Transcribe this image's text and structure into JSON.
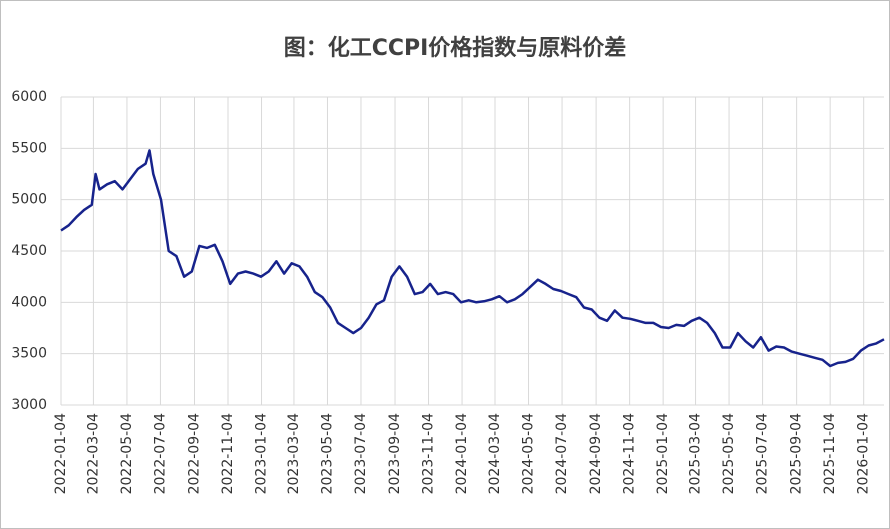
{
  "chart_data": {
    "type": "line",
    "title": "图：化工CCPI价格指数与原料价差",
    "x": [
      "2022-01-04",
      "2022-01-18",
      "2022-02-01",
      "2022-02-15",
      "2022-03-01",
      "2022-03-08",
      "2022-03-15",
      "2022-03-29",
      "2022-04-12",
      "2022-04-26",
      "2022-05-10",
      "2022-05-24",
      "2022-06-07",
      "2022-06-14",
      "2022-06-21",
      "2022-07-05",
      "2022-07-19",
      "2022-08-02",
      "2022-08-16",
      "2022-08-30",
      "2022-09-13",
      "2022-09-27",
      "2022-10-11",
      "2022-10-25",
      "2022-11-08",
      "2022-11-22",
      "2022-12-06",
      "2022-12-20",
      "2023-01-03",
      "2023-01-17",
      "2023-01-31",
      "2023-02-14",
      "2023-02-28",
      "2023-03-14",
      "2023-03-28",
      "2023-04-11",
      "2023-04-25",
      "2023-05-09",
      "2023-05-23",
      "2023-06-06",
      "2023-06-20",
      "2023-07-04",
      "2023-07-18",
      "2023-08-01",
      "2023-08-15",
      "2023-08-29",
      "2023-09-12",
      "2023-09-26",
      "2023-10-10",
      "2023-10-24",
      "2023-11-07",
      "2023-11-21",
      "2023-12-05",
      "2023-12-19",
      "2024-01-02",
      "2024-01-16",
      "2024-01-30",
      "2024-02-13",
      "2024-02-27",
      "2024-03-12",
      "2024-03-26",
      "2024-04-09",
      "2024-04-23",
      "2024-05-07",
      "2024-05-21",
      "2024-06-04",
      "2024-06-18",
      "2024-07-02",
      "2024-07-16",
      "2024-07-30",
      "2024-08-13",
      "2024-08-27",
      "2024-09-10",
      "2024-09-24",
      "2024-10-08",
      "2024-10-22",
      "2024-11-05",
      "2024-11-19",
      "2024-12-03",
      "2024-12-17",
      "2024-12-31",
      "2025-01-14",
      "2025-01-28",
      "2025-02-11",
      "2025-02-25",
      "2025-03-11",
      "2025-03-25",
      "2025-04-08",
      "2025-04-22",
      "2025-05-06",
      "2025-05-20",
      "2025-06-03",
      "2025-06-17",
      "2025-07-01",
      "2025-07-15",
      "2025-07-29",
      "2025-08-12",
      "2025-08-26",
      "2025-09-09",
      "2025-09-23",
      "2025-10-07",
      "2025-10-21",
      "2025-11-04",
      "2025-11-18",
      "2025-12-02",
      "2025-12-16",
      "2025-12-30",
      "2026-01-13",
      "2026-01-27",
      "2026-02-10"
    ],
    "values": [
      4700,
      4750,
      4830,
      4900,
      4950,
      5250,
      5100,
      5150,
      5180,
      5100,
      5200,
      5300,
      5350,
      5480,
      5250,
      5000,
      4500,
      4450,
      4250,
      4300,
      4550,
      4530,
      4560,
      4400,
      4180,
      4280,
      4300,
      4280,
      4250,
      4300,
      4400,
      4280,
      4380,
      4350,
      4250,
      4100,
      4050,
      3950,
      3800,
      3750,
      3700,
      3750,
      3850,
      3980,
      4020,
      4250,
      4350,
      4250,
      4080,
      4100,
      4180,
      4080,
      4100,
      4080,
      4000,
      4020,
      4000,
      4010,
      4030,
      4060,
      4000,
      4030,
      4080,
      4150,
      4220,
      4180,
      4130,
      4110,
      4080,
      4050,
      3950,
      3930,
      3850,
      3820,
      3920,
      3850,
      3840,
      3820,
      3800,
      3800,
      3760,
      3750,
      3780,
      3770,
      3820,
      3850,
      3800,
      3700,
      3560,
      3560,
      3700,
      3620,
      3560,
      3660,
      3530,
      3570,
      3560,
      3520,
      3500,
      3480,
      3460,
      3440,
      3380,
      3410,
      3420,
      3450,
      3530,
      3580,
      3600,
      3640
    ],
    "color": "#17238c",
    "xlim": [
      "2022-01-04",
      "2026-02-10"
    ],
    "xticks": [
      "2022-01-04",
      "2022-03-04",
      "2022-05-04",
      "2022-07-04",
      "2022-09-04",
      "2022-11-04",
      "2023-01-04",
      "2023-03-04",
      "2023-05-04",
      "2023-07-04",
      "2023-09-04",
      "2023-11-04",
      "2024-01-04",
      "2024-03-04",
      "2024-05-04",
      "2024-07-04",
      "2024-09-04",
      "2024-11-04",
      "2025-01-04",
      "2025-03-04",
      "2025-05-04",
      "2025-07-04",
      "2025-09-04",
      "2025-11-04",
      "2026-01-04"
    ],
    "ylim": [
      3000,
      6000
    ],
    "yticks": [
      3000,
      3500,
      4000,
      4500,
      5000,
      5500,
      6000
    ],
    "grid": true
  }
}
